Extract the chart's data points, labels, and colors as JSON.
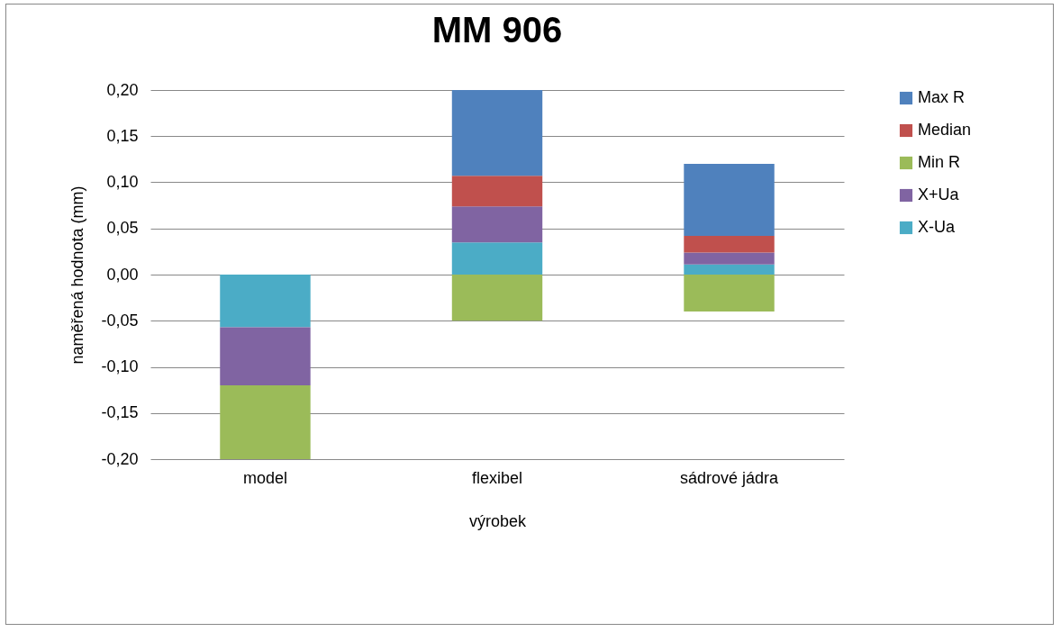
{
  "chart_data": {
    "type": "bar",
    "title": "MM 906",
    "xlabel": "výrobek",
    "ylabel": "naměřená hodnota (mm)",
    "categories": [
      "model",
      "flexibel",
      "sádrové jádra"
    ],
    "stacked": true,
    "series": [
      {
        "name": "X-Ua",
        "color": "#4bacc6",
        "values": [
          -0.057,
          0.035,
          0.011
        ]
      },
      {
        "name": "X+Ua",
        "color": "#8064a2",
        "values": [
          -0.063,
          0.039,
          0.013
        ]
      },
      {
        "name": "Min R",
        "color": "#9bbb59",
        "values": [
          -0.08,
          -0.05,
          -0.04
        ]
      },
      {
        "name": "Median",
        "color": "#c0504d",
        "values": [
          null,
          0.033,
          0.018
        ]
      },
      {
        "name": "Max R",
        "color": "#4f81bd",
        "values": [
          null,
          0.093,
          0.078
        ]
      }
    ],
    "ylim": [
      -0.2,
      0.2
    ],
    "yticks": [
      {
        "value": -0.2,
        "label": "-0,20"
      },
      {
        "value": -0.15,
        "label": "-0,15"
      },
      {
        "value": -0.1,
        "label": "-0,10"
      },
      {
        "value": -0.05,
        "label": "-0,05"
      },
      {
        "value": 0,
        "label": "0,00"
      },
      {
        "value": 0.05,
        "label": "0,05"
      },
      {
        "value": 0.1,
        "label": "0,10"
      },
      {
        "value": 0.15,
        "label": "0,15"
      },
      {
        "value": 0.2,
        "label": "0,20"
      }
    ],
    "grid": "y",
    "legend": "right"
  }
}
